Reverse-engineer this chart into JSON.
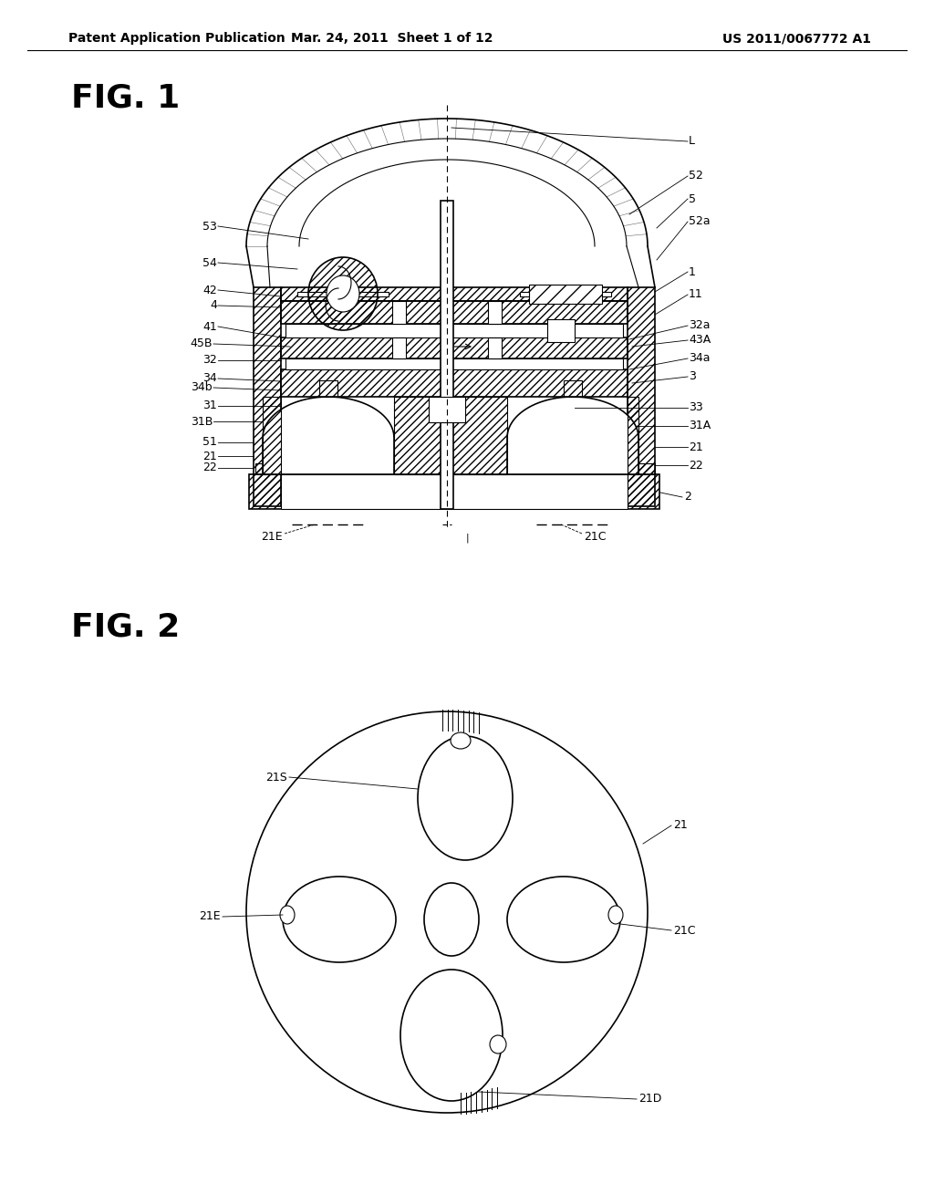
{
  "bg_color": "#ffffff",
  "header_left": "Patent Application Publication",
  "header_mid": "Mar. 24, 2011  Sheet 1 of 12",
  "header_right": "US 2011/0067772 A1",
  "fig1_label": "FIG. 1",
  "fig2_label": "FIG. 2",
  "line_color": "#000000",
  "label_fontsize": 9,
  "header_fontsize": 10,
  "fig_label_fontsize": 26
}
